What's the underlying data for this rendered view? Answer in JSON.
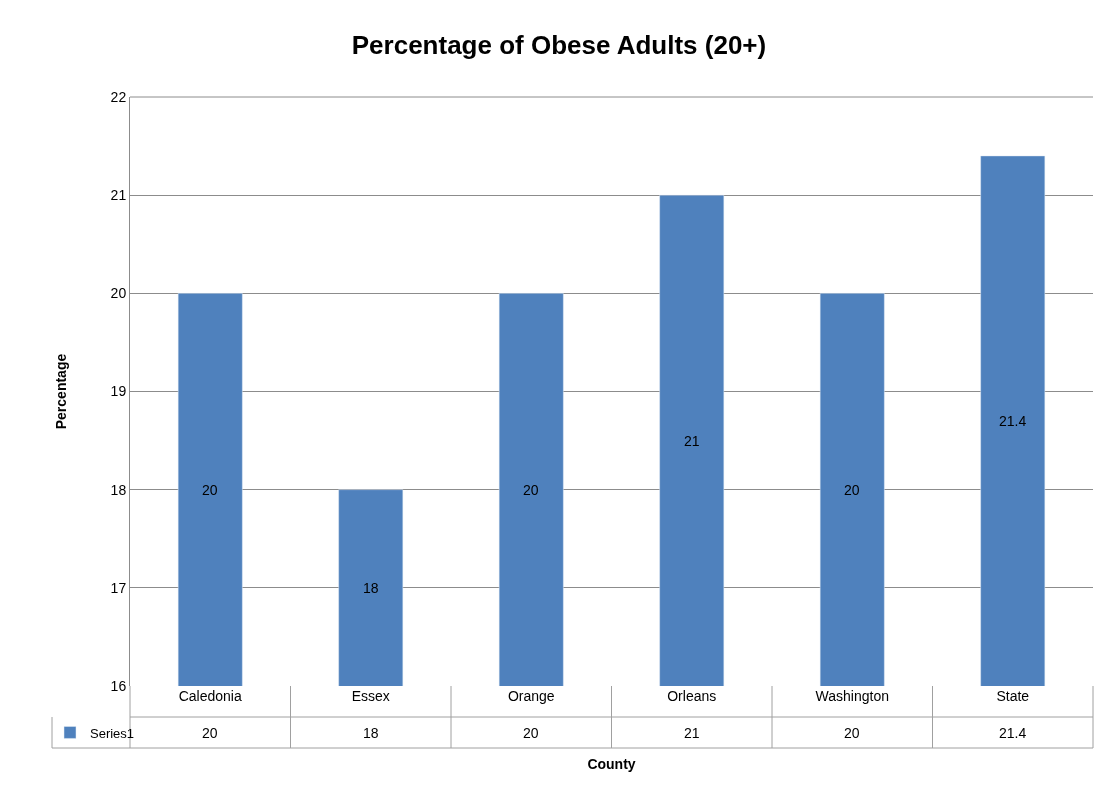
{
  "chart_data": {
    "type": "bar",
    "title": "Percentage of Obese Adults (20+)",
    "xlabel": "County",
    "ylabel": "Percentage",
    "categories": [
      "Caledonia",
      "Essex",
      "Orange",
      "Orleans",
      "Washington",
      "State"
    ],
    "series": [
      {
        "name": "Series1",
        "color": "#4f81bd",
        "values": [
          20,
          18,
          20,
          21,
          20,
          21.4
        ]
      }
    ],
    "annotations": [
      "20",
      "18",
      "20",
      "21",
      "20",
      "21.4"
    ],
    "ylim": [
      16,
      22
    ],
    "yticks": [
      16,
      17,
      18,
      19,
      20,
      21,
      22
    ],
    "grid": "y",
    "legend": "bottom",
    "data_labels": true
  }
}
